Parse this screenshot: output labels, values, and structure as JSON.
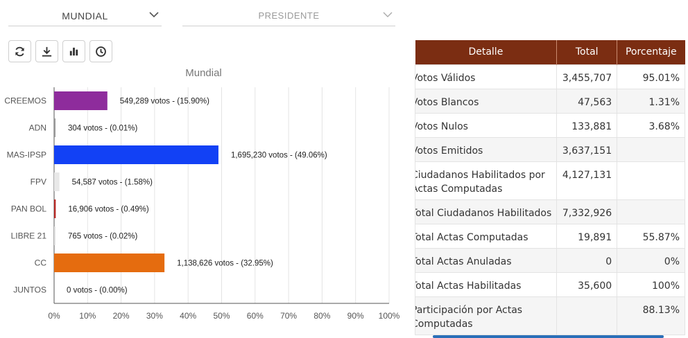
{
  "filters": {
    "region": "MUNDIAL",
    "office": "PRESIDENTE"
  },
  "toolbar": {
    "buttons": [
      "refresh-icon",
      "download-icon",
      "bar-chart-icon",
      "clock-icon"
    ]
  },
  "chart_data": {
    "type": "bar",
    "orientation": "horizontal",
    "title": "Mundial",
    "categories": [
      "CREEMOS",
      "ADN",
      "MAS-IPSP",
      "FPV",
      "PAN BOL",
      "LIBRE 21",
      "CC",
      "JUNTOS"
    ],
    "values": [
      15.9,
      0.01,
      49.06,
      1.58,
      0.49,
      0.02,
      32.95,
      0.0
    ],
    "labels": [
      "549,289 votos - (15.90%)",
      "304 votos - (0.01%)",
      "1,695,230 votos - (49.06%)",
      "54,587 votos - (1.58%)",
      "16,906 votos - (0.49%)",
      "765 votos - (0.02%)",
      "1,138,626 votos - (32.95%)",
      "0 votos - (0.00%)"
    ],
    "colors": [
      "#8e2c9c",
      "#9a9a9a",
      "#1241f5",
      "#e8e8e8",
      "#b82a26",
      "#e2e2e2",
      "#e56c0f",
      "#e2e2e2"
    ],
    "xlim": [
      0,
      100
    ],
    "xticks": [
      "0%",
      "10%",
      "20%",
      "30%",
      "40%",
      "50%",
      "60%",
      "70%",
      "80%",
      "90%",
      "100%"
    ],
    "grid": true
  },
  "table": {
    "headers": [
      "Detalle",
      "Total",
      "Porcentaje"
    ],
    "rows": [
      {
        "label": "Votos Válidos",
        "total": "3,455,707",
        "pct": "95.01%"
      },
      {
        "label": "Votos Blancos",
        "total": "47,563",
        "pct": "1.31%"
      },
      {
        "label": "Votos Nulos",
        "total": "133,881",
        "pct": "3.68%"
      },
      {
        "label": "Votos Emitidos",
        "total": "3,637,151",
        "pct": ""
      },
      {
        "label": "Ciudadanos Habilitados por Actas Computadas",
        "total": "4,127,131",
        "pct": ""
      },
      {
        "label": "Total Ciudadanos Habilitados",
        "total": "7,332,926",
        "pct": ""
      },
      {
        "label": "Total Actas Computadas",
        "total": "19,891",
        "pct": "55.87%"
      },
      {
        "label": "Total Actas Anuladas",
        "total": "0",
        "pct": "0%"
      },
      {
        "label": "Total Actas Habilitadas",
        "total": "35,600",
        "pct": "100%"
      },
      {
        "label": "Participación por Actas Computadas",
        "total": "",
        "pct": "88.13%"
      }
    ]
  }
}
